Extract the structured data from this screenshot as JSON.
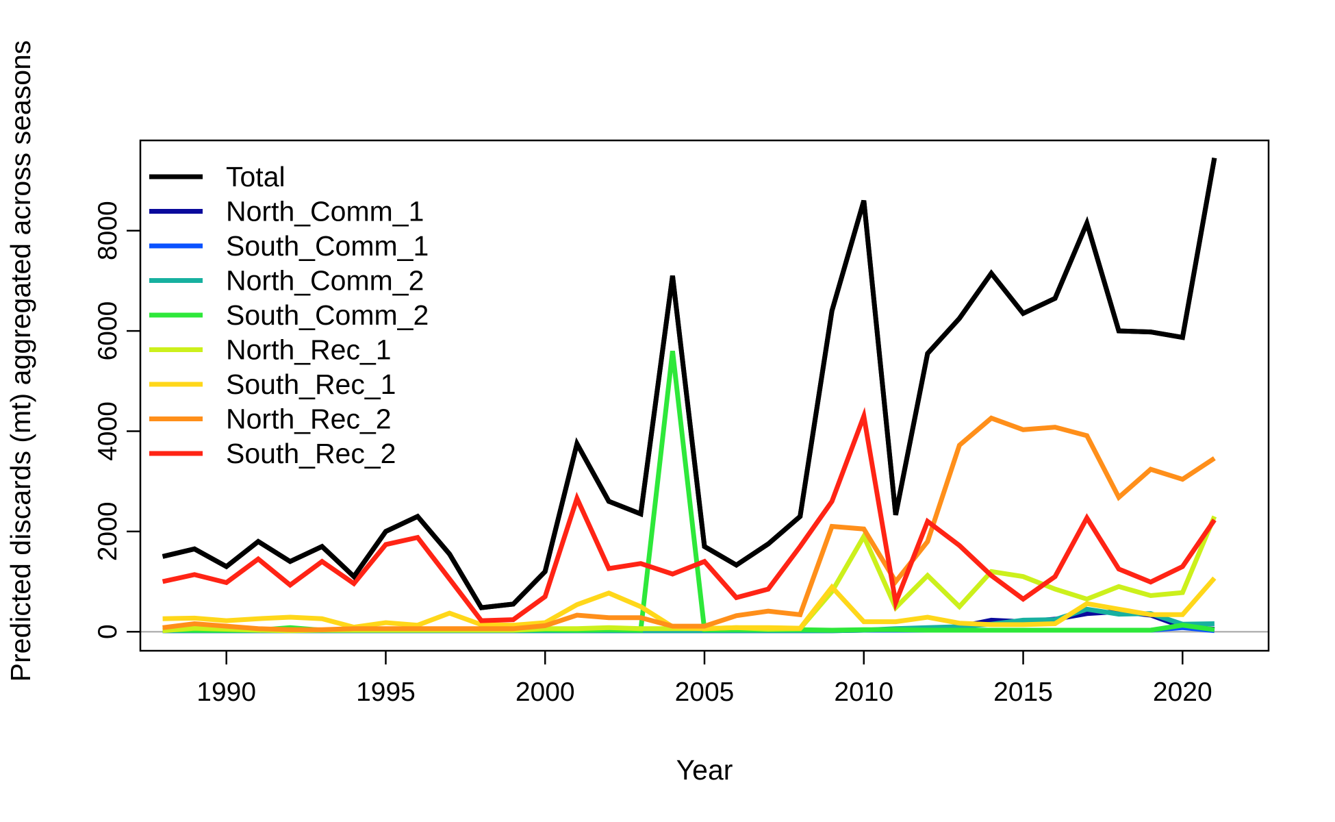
{
  "chart_data": {
    "type": "line",
    "title": "",
    "xlabel": "Year",
    "ylabel": "Predicted discards (mt) aggregated across seasons",
    "xlim": [
      1987.3,
      2022.7
    ],
    "ylim": [
      -380,
      9800
    ],
    "x_ticks": [
      1990,
      1995,
      2000,
      2005,
      2010,
      2015,
      2020
    ],
    "y_ticks": [
      0,
      2000,
      4000,
      6000,
      8000
    ],
    "x_tick_labels": [
      "1990",
      "1995",
      "2000",
      "2005",
      "2010",
      "2015",
      "2020"
    ],
    "y_tick_labels": [
      "0",
      "2000",
      "4000",
      "6000",
      "8000"
    ],
    "zero_line": true,
    "grid": false,
    "legend_position": "top-left",
    "x": [
      1988,
      1989,
      1990,
      1991,
      1992,
      1993,
      1994,
      1995,
      1996,
      1997,
      1998,
      1999,
      2000,
      2001,
      2002,
      2003,
      2004,
      2005,
      2006,
      2007,
      2008,
      2009,
      2010,
      2011,
      2012,
      2013,
      2014,
      2015,
      2016,
      2017,
      2018,
      2019,
      2020,
      2021
    ],
    "series": [
      {
        "name": "Total",
        "color": "#000000",
        "values": [
          1500,
          1650,
          1300,
          1800,
          1400,
          1700,
          1100,
          2000,
          2300,
          1550,
          480,
          550,
          1200,
          3750,
          2600,
          2350,
          7100,
          1700,
          1330,
          1750,
          2300,
          6400,
          8600,
          2330,
          5550,
          6250,
          7150,
          6350,
          6650,
          8150,
          6000,
          5980,
          5870,
          9450
        ]
      },
      {
        "name": "North_Comm_1",
        "color": "#0a0a9c",
        "values": [
          20,
          20,
          20,
          20,
          20,
          20,
          20,
          20,
          20,
          20,
          20,
          20,
          20,
          20,
          20,
          20,
          20,
          20,
          20,
          20,
          20,
          20,
          30,
          30,
          60,
          100,
          230,
          200,
          250,
          360,
          400,
          330,
          100,
          50
        ]
      },
      {
        "name": "South_Comm_1",
        "color": "#0a52ff",
        "values": [
          30,
          30,
          30,
          30,
          30,
          30,
          30,
          30,
          30,
          30,
          30,
          30,
          30,
          30,
          30,
          30,
          30,
          30,
          30,
          30,
          30,
          30,
          30,
          30,
          30,
          30,
          30,
          30,
          30,
          30,
          30,
          30,
          80,
          20
        ]
      },
      {
        "name": "North_Comm_2",
        "color": "#17b0a0",
        "values": [
          20,
          20,
          20,
          20,
          20,
          20,
          20,
          20,
          20,
          20,
          20,
          20,
          20,
          20,
          20,
          20,
          20,
          20,
          20,
          20,
          20,
          20,
          30,
          60,
          80,
          100,
          150,
          230,
          240,
          450,
          350,
          360,
          150,
          160
        ]
      },
      {
        "name": "South_Comm_2",
        "color": "#2ee83a",
        "values": [
          40,
          30,
          30,
          30,
          80,
          30,
          30,
          30,
          30,
          40,
          30,
          30,
          40,
          30,
          40,
          30,
          5600,
          40,
          40,
          40,
          40,
          30,
          40,
          40,
          30,
          30,
          30,
          30,
          30,
          30,
          30,
          30,
          130,
          40
        ]
      },
      {
        "name": "North_Rec_1",
        "color": "#ccf01c",
        "values": [
          20,
          70,
          50,
          30,
          20,
          30,
          30,
          30,
          30,
          30,
          30,
          30,
          60,
          60,
          80,
          60,
          60,
          60,
          80,
          50,
          60,
          800,
          1900,
          480,
          1120,
          500,
          1200,
          1100,
          850,
          650,
          900,
          720,
          780,
          2300
        ]
      },
      {
        "name": "South_Rec_1",
        "color": "#ffd71a",
        "values": [
          260,
          270,
          220,
          260,
          290,
          260,
          90,
          180,
          130,
          370,
          140,
          130,
          180,
          540,
          770,
          500,
          100,
          60,
          80,
          80,
          70,
          890,
          200,
          200,
          290,
          170,
          140,
          140,
          160,
          560,
          450,
          340,
          340,
          1070
        ]
      },
      {
        "name": "North_Rec_2",
        "color": "#ff8f1a",
        "values": [
          80,
          160,
          110,
          60,
          40,
          40,
          60,
          60,
          60,
          60,
          60,
          60,
          120,
          330,
          280,
          280,
          110,
          110,
          320,
          410,
          340,
          2100,
          2050,
          1000,
          1800,
          3720,
          4260,
          4030,
          4080,
          3910,
          2680,
          3240,
          3040,
          3460
        ]
      },
      {
        "name": "South_Rec_2",
        "color": "#ff2415",
        "values": [
          1000,
          1140,
          980,
          1450,
          930,
          1400,
          960,
          1740,
          1880,
          1050,
          220,
          240,
          700,
          2660,
          1260,
          1360,
          1150,
          1400,
          680,
          850,
          1700,
          2600,
          4300,
          580,
          2200,
          1720,
          1120,
          650,
          1100,
          2270,
          1250,
          990,
          1300,
          2230
        ]
      }
    ]
  }
}
